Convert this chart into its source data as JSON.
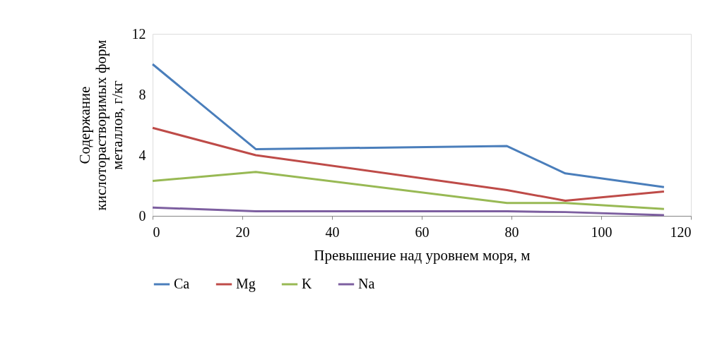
{
  "chart_data": {
    "type": "line",
    "xlabel": "Превышение над уровнем моря, м",
    "ylabel": "Содержание кислоторастворимых форм металлов, г/кг",
    "x": [
      0,
      23,
      79,
      92,
      114
    ],
    "series": [
      {
        "name": "Ca",
        "color": "#4a7ebb",
        "values": [
          10.0,
          4.4,
          4.6,
          2.8,
          1.9
        ]
      },
      {
        "name": "Mg",
        "color": "#be4b48",
        "values": [
          5.8,
          4.0,
          1.7,
          1.0,
          1.6
        ]
      },
      {
        "name": "K",
        "color": "#98b954",
        "values": [
          2.3,
          2.9,
          0.85,
          0.85,
          0.45
        ]
      },
      {
        "name": "Na",
        "color": "#7d5fa0",
        "values": [
          0.55,
          0.3,
          0.3,
          0.25,
          0.05
        ]
      }
    ],
    "xlim": [
      0,
      120
    ],
    "xticks": [
      0,
      20,
      40,
      60,
      80,
      100,
      120
    ],
    "ylim": [
      0,
      12
    ],
    "yticks": [
      0,
      4,
      8,
      12
    ],
    "grid": false,
    "legend": "bottom",
    "marker": "none",
    "line_style": "solid"
  }
}
